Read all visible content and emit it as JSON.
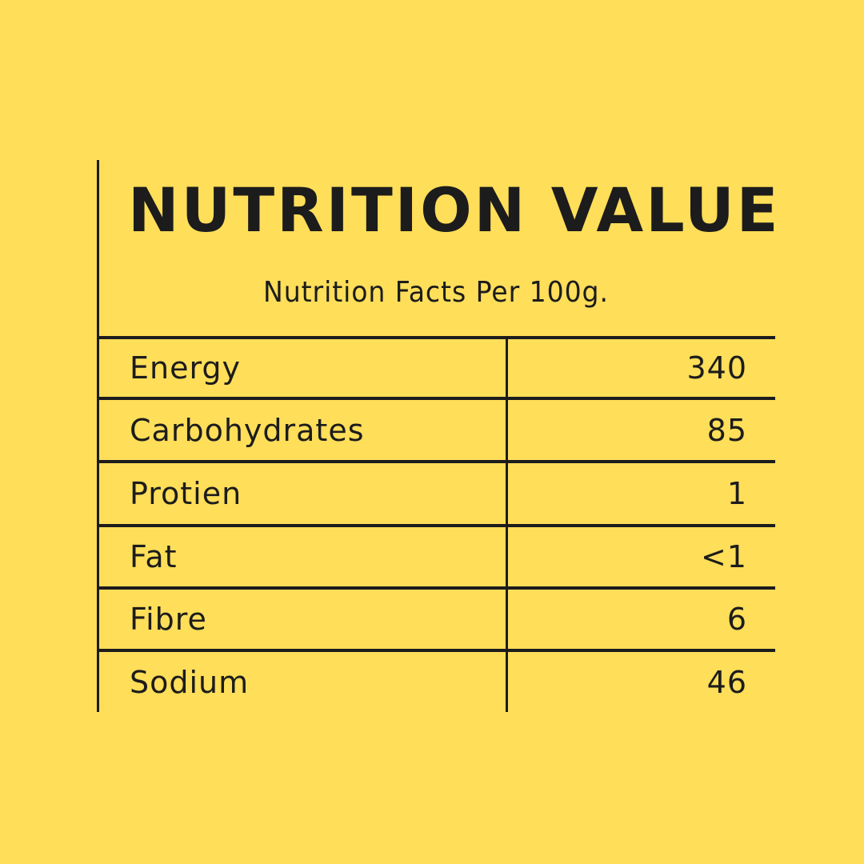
{
  "background_color": "#FFDE59",
  "text_color": "#1c1c1c",
  "title": "NUTRITION VALUE",
  "subtitle": "Nutrition Facts Per 100g.",
  "rows": [
    {
      "label": "Energy",
      "value": "340"
    },
    {
      "label": "Carbohydrates",
      "value": "85"
    },
    {
      "label": "Protien",
      "value": "1"
    },
    {
      "label": "Fat",
      "value": "<1"
    },
    {
      "label": "Fibre",
      "value": "6"
    },
    {
      "label": "Sodium",
      "value": "46"
    }
  ]
}
